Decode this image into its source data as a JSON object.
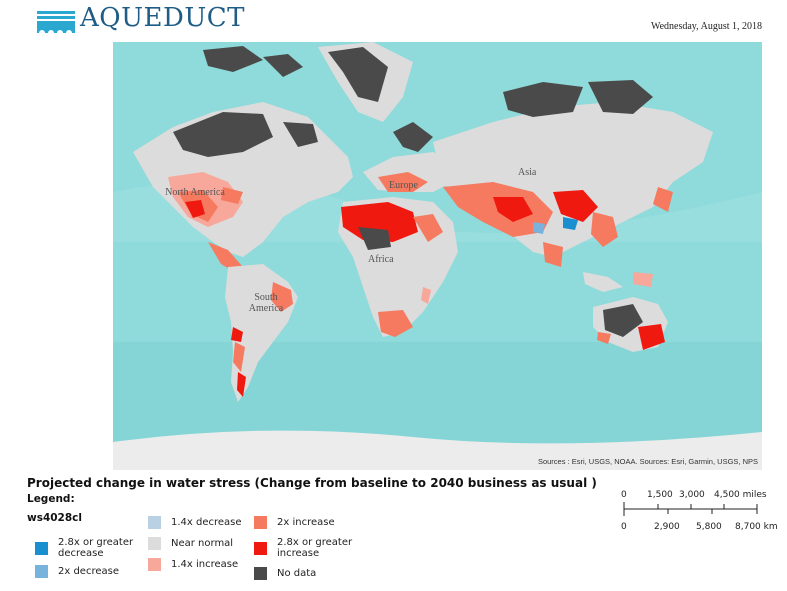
{
  "header": {
    "logo_text": "AQUEDUCT",
    "logo_icon": "aqueduct-arches-icon",
    "date": "Wednesday, August 1, 2018"
  },
  "map": {
    "labels": {
      "north_america": "North America",
      "europe": "Europe",
      "asia": "Asia",
      "africa": "Africa",
      "south_america": "South America"
    },
    "sources": "Sources : Esri, USGS, NOAA. Sources: Esri, Garmin, USGS, NPS"
  },
  "title": "Projected change in water stress (Change from baseline to 2040 business as usual )",
  "legend": {
    "heading": "Legend:",
    "layer": "ws4028cl",
    "items": [
      {
        "label": "2.8x or greater decrease",
        "color": "#1a8fd0"
      },
      {
        "label": "2x decrease",
        "color": "#77b3dd"
      },
      {
        "label": "1.4x decrease",
        "color": "#b9d1e3"
      },
      {
        "label": "Near normal",
        "color": "#dcdcdc"
      },
      {
        "label": "1.4x increase",
        "color": "#f7a89a"
      },
      {
        "label": "2x increase",
        "color": "#f57a60"
      },
      {
        "label": "2.8x or greater increase",
        "color": "#f0190f"
      },
      {
        "label": "No data",
        "color": "#4a4a4a"
      }
    ]
  },
  "scalebar": {
    "miles": [
      "0",
      "1,500",
      "3,000",
      "4,500 miles"
    ],
    "km": [
      "0",
      "2,900",
      "5,800",
      "8,700 km"
    ]
  }
}
